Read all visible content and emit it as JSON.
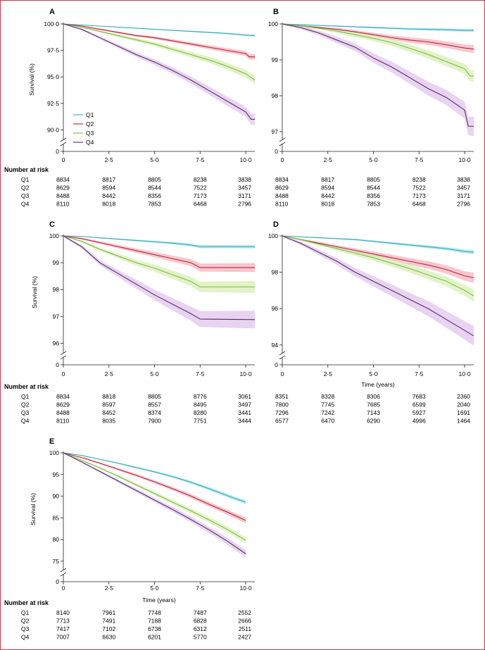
{
  "figure": {
    "number_at_risk_label": "Number at risk",
    "y_label": "Survival (%)",
    "x_label": "Time (years)"
  },
  "colors": {
    "Q1": "#3ea7b8",
    "Q2": "#b8243a",
    "Q3": "#7dbb4a",
    "Q4": "#5a2a6a",
    "Q1_band": "#9fe3ef",
    "Q2_band": "#f4b4be",
    "Q3_band": "#d8efb4",
    "Q4_band": "#e0c6ec"
  },
  "x_ticks": [
    "0",
    "2·5",
    "5·0",
    "7·5",
    "10·0"
  ],
  "chart_data": [
    {
      "type": "line",
      "panel": "A",
      "ylabel": "Survival (%)",
      "xlabel": "",
      "xlim": [
        0,
        10.5
      ],
      "ylim": [
        89.5,
        100
      ],
      "y_ticks": [
        "90·0",
        "92·5",
        "95·0",
        "97·5",
        "100·0"
      ],
      "y_tick_values": [
        90,
        92.5,
        95,
        97.5,
        100
      ],
      "legend": [
        "Q1",
        "Q2",
        "Q3",
        "Q4"
      ],
      "legend_position": "bottom-left",
      "series": [
        {
          "name": "Q1",
          "x": [
            0,
            1,
            2,
            3,
            4,
            5,
            6,
            7,
            8,
            9,
            10,
            10.5
          ],
          "values": [
            100,
            99.9,
            99.8,
            99.7,
            99.6,
            99.5,
            99.4,
            99.3,
            99.2,
            99.1,
            98.95,
            98.9
          ],
          "band": 0.08
        },
        {
          "name": "Q2",
          "x": [
            0,
            1,
            2,
            3,
            4,
            5,
            6,
            7,
            8,
            9,
            10,
            10.2,
            10.5
          ],
          "values": [
            100,
            99.8,
            99.5,
            99.2,
            98.9,
            98.7,
            98.4,
            98.1,
            97.8,
            97.5,
            97.2,
            96.9,
            96.9
          ],
          "band": 0.25
        },
        {
          "name": "Q3",
          "x": [
            0,
            1,
            2,
            3,
            4,
            5,
            6,
            7,
            8,
            9,
            10,
            10.5
          ],
          "values": [
            100,
            99.7,
            99.3,
            98.9,
            98.5,
            98.1,
            97.6,
            97.1,
            96.6,
            96.0,
            95.3,
            94.7
          ],
          "band": 0.35
        },
        {
          "name": "Q4",
          "x": [
            0,
            1,
            2,
            3,
            4,
            5,
            6,
            7,
            8,
            9,
            10,
            10.3,
            10.5
          ],
          "values": [
            100,
            99.5,
            98.7,
            97.9,
            97.1,
            96.4,
            95.6,
            94.7,
            93.7,
            92.7,
            91.7,
            91.0,
            91.0
          ],
          "band": 0.5
        }
      ],
      "number_at_risk": {
        "Q1": [
          "8834",
          "8817",
          "8805",
          "8238",
          "3838"
        ],
        "Q2": [
          "8629",
          "8594",
          "8544",
          "7522",
          "3457"
        ],
        "Q3": [
          "8488",
          "8442",
          "8356",
          "7173",
          "3171"
        ],
        "Q4": [
          "8110",
          "8018",
          "7853",
          "6468",
          "2796"
        ]
      }
    },
    {
      "type": "line",
      "panel": "B",
      "ylabel": "",
      "xlabel": "",
      "xlim": [
        0,
        10.5
      ],
      "ylim": [
        96.9,
        100
      ],
      "y_ticks": [
        "97",
        "98",
        "99",
        "100"
      ],
      "y_tick_values": [
        97,
        98,
        99,
        100
      ],
      "series": [
        {
          "name": "Q1",
          "x": [
            0,
            1,
            2,
            3,
            4,
            5,
            6,
            7,
            8,
            9,
            10,
            10.5
          ],
          "values": [
            100,
            99.98,
            99.96,
            99.94,
            99.92,
            99.9,
            99.88,
            99.86,
            99.85,
            99.84,
            99.82,
            99.82
          ],
          "band": 0.04
        },
        {
          "name": "Q2",
          "x": [
            0,
            1,
            2,
            3,
            4,
            5,
            6,
            7,
            8,
            9,
            10,
            10.5
          ],
          "values": [
            100,
            99.95,
            99.9,
            99.85,
            99.78,
            99.7,
            99.62,
            99.55,
            99.5,
            99.42,
            99.33,
            99.3
          ],
          "band": 0.1
        },
        {
          "name": "Q3",
          "x": [
            0,
            1,
            2,
            3,
            4,
            5,
            6,
            7,
            8,
            9,
            10,
            10.3,
            10.5
          ],
          "values": [
            100,
            99.95,
            99.88,
            99.8,
            99.7,
            99.6,
            99.48,
            99.32,
            99.15,
            98.95,
            98.75,
            98.55,
            98.55
          ],
          "band": 0.15
        },
        {
          "name": "Q4",
          "x": [
            0,
            1,
            2,
            3,
            4,
            5,
            6,
            7,
            8,
            9,
            10,
            10.2,
            10.5
          ],
          "values": [
            100,
            99.9,
            99.75,
            99.55,
            99.35,
            99.05,
            98.8,
            98.5,
            98.2,
            97.95,
            97.6,
            97.15,
            97.15
          ],
          "band": 0.25
        }
      ],
      "number_at_risk": {
        "Q1": [
          "8834",
          "8817",
          "8805",
          "8238",
          "3838"
        ],
        "Q2": [
          "8629",
          "8594",
          "8544",
          "7522",
          "3457"
        ],
        "Q3": [
          "8488",
          "8442",
          "8356",
          "7173",
          "3171"
        ],
        "Q4": [
          "8110",
          "8018",
          "7853",
          "6468",
          "2796"
        ]
      }
    },
    {
      "type": "line",
      "panel": "C",
      "ylabel": "Survival (%)",
      "xlabel": "",
      "xlim": [
        0,
        10.5
      ],
      "ylim": [
        95.8,
        100
      ],
      "y_ticks": [
        "96",
        "97",
        "98",
        "99",
        "100"
      ],
      "y_tick_values": [
        96,
        97,
        98,
        99,
        100
      ],
      "series": [
        {
          "name": "Q1",
          "x": [
            0,
            1,
            2,
            3,
            4,
            5,
            6,
            7,
            7.5,
            10.5
          ],
          "values": [
            100,
            99.98,
            99.93,
            99.88,
            99.83,
            99.78,
            99.73,
            99.66,
            99.6,
            99.6
          ],
          "band": 0.06
        },
        {
          "name": "Q2",
          "x": [
            0,
            1,
            2,
            3,
            4,
            5,
            6,
            7,
            7.5,
            10.5
          ],
          "values": [
            100,
            99.9,
            99.75,
            99.6,
            99.45,
            99.3,
            99.15,
            99.0,
            98.82,
            98.82
          ],
          "band": 0.15
        },
        {
          "name": "Q3",
          "x": [
            0,
            1,
            2,
            3,
            4,
            5,
            6,
            7,
            7.5,
            10.5
          ],
          "values": [
            100,
            99.8,
            99.5,
            99.25,
            99.0,
            98.8,
            98.55,
            98.3,
            98.1,
            98.1
          ],
          "band": 0.2
        },
        {
          "name": "Q4",
          "x": [
            0,
            1,
            2,
            3,
            4,
            5,
            6,
            7,
            7.5,
            10.5
          ],
          "values": [
            100,
            99.6,
            99.0,
            98.6,
            98.2,
            97.8,
            97.45,
            97.1,
            96.9,
            96.88
          ],
          "band": 0.3
        }
      ],
      "number_at_risk": {
        "Q1": [
          "8834",
          "8818",
          "8805",
          "8776",
          "3061"
        ],
        "Q2": [
          "8629",
          "8597",
          "8557",
          "8495",
          "3497"
        ],
        "Q3": [
          "8488",
          "8452",
          "8374",
          "8280",
          "3441"
        ],
        "Q4": [
          "8110",
          "8035",
          "7900",
          "7751",
          "3444"
        ]
      }
    },
    {
      "type": "line",
      "panel": "D",
      "ylabel": "",
      "xlabel": "Time (years)",
      "xlim": [
        0,
        10.5
      ],
      "ylim": [
        93.8,
        100
      ],
      "y_ticks": [
        "94",
        "96",
        "98",
        "100"
      ],
      "y_tick_values": [
        94,
        96,
        98,
        100
      ],
      "series": [
        {
          "name": "Q1",
          "x": [
            0,
            1,
            2,
            3,
            4,
            5,
            6,
            7,
            8,
            9,
            10,
            10.5
          ],
          "values": [
            100,
            99.95,
            99.9,
            99.85,
            99.8,
            99.7,
            99.6,
            99.5,
            99.4,
            99.3,
            99.15,
            99.1
          ],
          "band": 0.1
        },
        {
          "name": "Q2",
          "x": [
            0,
            1,
            2,
            3,
            4,
            5,
            6,
            7,
            8,
            9,
            10,
            10.5
          ],
          "values": [
            100,
            99.8,
            99.6,
            99.4,
            99.2,
            99.0,
            98.8,
            98.6,
            98.4,
            98.15,
            97.8,
            97.7
          ],
          "band": 0.25
        },
        {
          "name": "Q3",
          "x": [
            0,
            1,
            2,
            3,
            4,
            5,
            6,
            7,
            8,
            9,
            10,
            10.5
          ],
          "values": [
            100,
            99.8,
            99.55,
            99.3,
            99.05,
            98.8,
            98.5,
            98.2,
            97.85,
            97.5,
            97.0,
            96.7
          ],
          "band": 0.3
        },
        {
          "name": "Q4",
          "x": [
            0,
            1,
            2,
            3,
            4,
            5,
            6,
            7,
            8,
            9,
            10,
            10.5
          ],
          "values": [
            100,
            99.6,
            99.1,
            98.6,
            98.0,
            97.5,
            97.0,
            96.5,
            96.0,
            95.4,
            94.8,
            94.5
          ],
          "band": 0.5
        }
      ],
      "number_at_risk": {
        "Q1": [
          "8351",
          "8328",
          "8306",
          "7683",
          "2360"
        ],
        "Q2": [
          "7800",
          "7745",
          "7685",
          "6599",
          "2040"
        ],
        "Q3": [
          "7296",
          "7242",
          "7143",
          "5927",
          "1691"
        ],
        "Q4": [
          "6577",
          "6470",
          "6290",
          "4996",
          "1464"
        ]
      }
    },
    {
      "type": "line",
      "panel": "E",
      "ylabel": "Survival (%)",
      "xlabel": "Time (years)",
      "xlim": [
        0,
        10.5
      ],
      "ylim": [
        74,
        100
      ],
      "y_ticks": [
        "75",
        "80",
        "85",
        "90",
        "95",
        "100"
      ],
      "y_tick_values": [
        75,
        80,
        85,
        90,
        95,
        100
      ],
      "series": [
        {
          "name": "Q1",
          "x": [
            0,
            1,
            2,
            3,
            4,
            5,
            6,
            7,
            8,
            9,
            10
          ],
          "values": [
            100,
            99.4,
            98.5,
            97.6,
            96.6,
            95.6,
            94.5,
            93.2,
            91.7,
            90.1,
            88.6
          ],
          "band": 0.4
        },
        {
          "name": "Q2",
          "x": [
            0,
            1,
            2,
            3,
            4,
            5,
            6,
            7,
            8,
            9,
            10
          ],
          "values": [
            100,
            98.9,
            97.6,
            96.2,
            94.8,
            93.3,
            91.7,
            90.0,
            88.1,
            86.3,
            84.4
          ],
          "band": 0.6
        },
        {
          "name": "Q3",
          "x": [
            0,
            1,
            2,
            3,
            4,
            5,
            6,
            7,
            8,
            9,
            10
          ],
          "values": [
            100,
            98.3,
            96.5,
            94.6,
            92.6,
            90.6,
            88.6,
            86.6,
            84.5,
            82.3,
            79.8
          ],
          "band": 0.7
        },
        {
          "name": "Q4",
          "x": [
            0,
            1,
            2,
            3,
            4,
            5,
            6,
            7,
            8,
            9,
            10
          ],
          "values": [
            100,
            97.9,
            95.7,
            93.5,
            91.3,
            89.1,
            86.9,
            84.6,
            82.2,
            79.6,
            76.7
          ],
          "band": 0.8
        }
      ],
      "number_at_risk": {
        "Q1": [
          "8140",
          "7961",
          "7748",
          "7487",
          "2552"
        ],
        "Q2": [
          "7713",
          "7491",
          "7188",
          "6828",
          "2666"
        ],
        "Q3": [
          "7417",
          "7102",
          "6738",
          "6312",
          "2511"
        ],
        "Q4": [
          "7007",
          "6630",
          "6201",
          "5770",
          "2427"
        ]
      }
    }
  ]
}
